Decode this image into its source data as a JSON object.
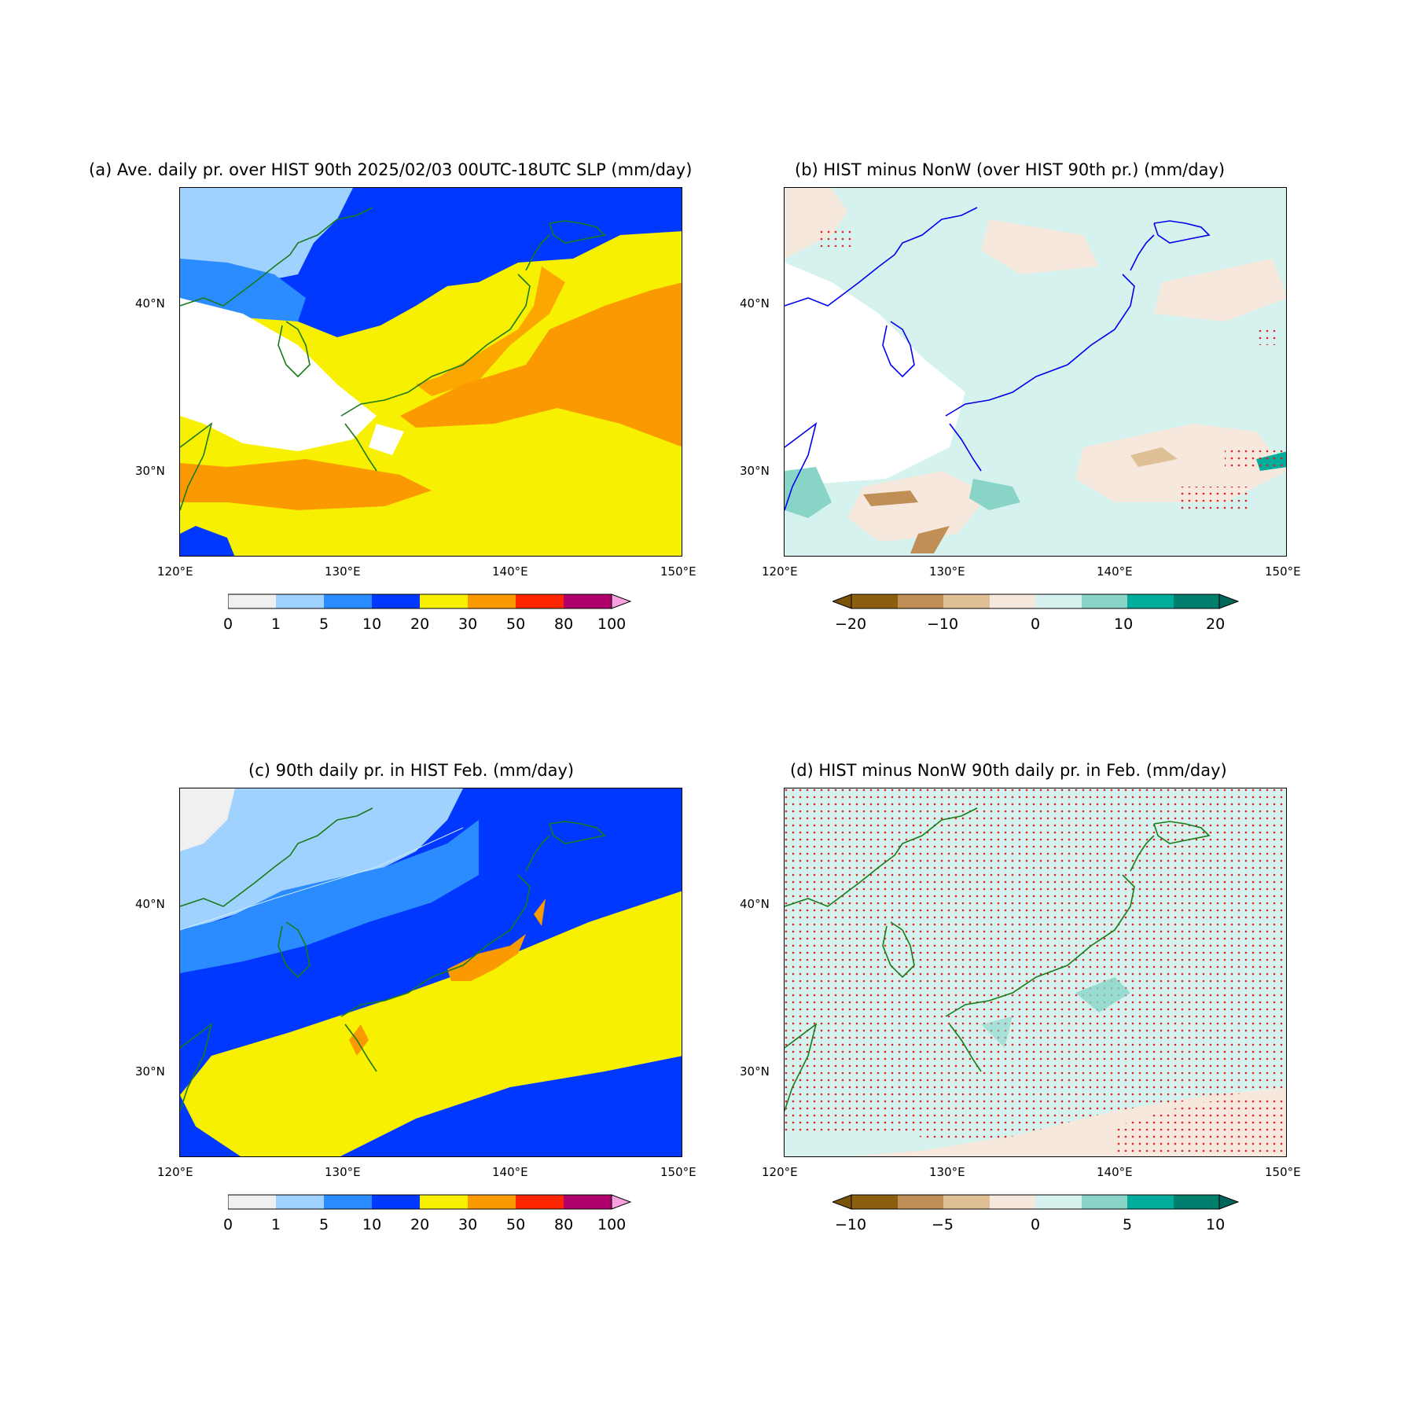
{
  "panels": [
    {
      "id": "a",
      "title": "(a) Ave. daily pr. over HIST 90th 2025/02/03 00UTC-18UTC SLP (mm/day)",
      "colorbar": {
        "kind": "sequential",
        "labels": [
          "0",
          "1",
          "5",
          "10",
          "20",
          "30",
          "50",
          "80",
          "100"
        ],
        "colors": [
          "#f0f0f0",
          "#a0d2ff",
          "#2a8cff",
          "#0038ff",
          "#f7f000",
          "#fb9a00",
          "#ff2600",
          "#b0006b"
        ],
        "extend_color": "#f7a0e0"
      },
      "coast_color": "#1a7a1a"
    },
    {
      "id": "b",
      "title": "(b) HIST minus NonW (over HIST 90th pr.) (mm/day)",
      "colorbar": {
        "kind": "diverging",
        "labels": [
          "−20",
          "−10",
          "0",
          "10",
          "20"
        ],
        "colors": [
          "#8c5f10",
          "#bf8f55",
          "#dfc096",
          "#f6e8dc",
          "#d6f2ee",
          "#88d5c8",
          "#00ad9c",
          "#007e6d"
        ],
        "extend_left": "#7a5208",
        "extend_right": "#00665a"
      },
      "coast_color": "#0000ee",
      "stipple": "red dots"
    },
    {
      "id": "c",
      "title": "(c) 90th daily pr. in HIST Feb. (mm/day)",
      "colorbar": {
        "kind": "sequential",
        "labels": [
          "0",
          "1",
          "5",
          "10",
          "20",
          "30",
          "50",
          "80",
          "100"
        ],
        "colors": [
          "#f0f0f0",
          "#a0d2ff",
          "#2a8cff",
          "#0038ff",
          "#f7f000",
          "#fb9a00",
          "#ff2600",
          "#b0006b"
        ],
        "extend_color": "#f7a0e0"
      },
      "coast_color": "#1a7a1a"
    },
    {
      "id": "d",
      "title": "(d) HIST minus NonW 90th daily pr. in Feb. (mm/day)",
      "colorbar": {
        "kind": "diverging",
        "labels": [
          "−10",
          "−5",
          "0",
          "5",
          "10"
        ],
        "colors": [
          "#8c5f10",
          "#bf8f55",
          "#dfc096",
          "#f6e8dc",
          "#d6f2ee",
          "#88d5c8",
          "#00ad9c",
          "#007e6d"
        ],
        "extend_left": "#7a5208",
        "extend_right": "#00665a"
      },
      "coast_color": "#1a7a1a",
      "stipple": "red dots"
    }
  ],
  "axes": {
    "lon_ticks": [
      "120°E",
      "130°E",
      "140°E",
      "150°E"
    ],
    "lat_ticks": [
      "40°N",
      "30°N"
    ],
    "lon_range": [
      120,
      150
    ],
    "lat_range": [
      25,
      47
    ]
  }
}
